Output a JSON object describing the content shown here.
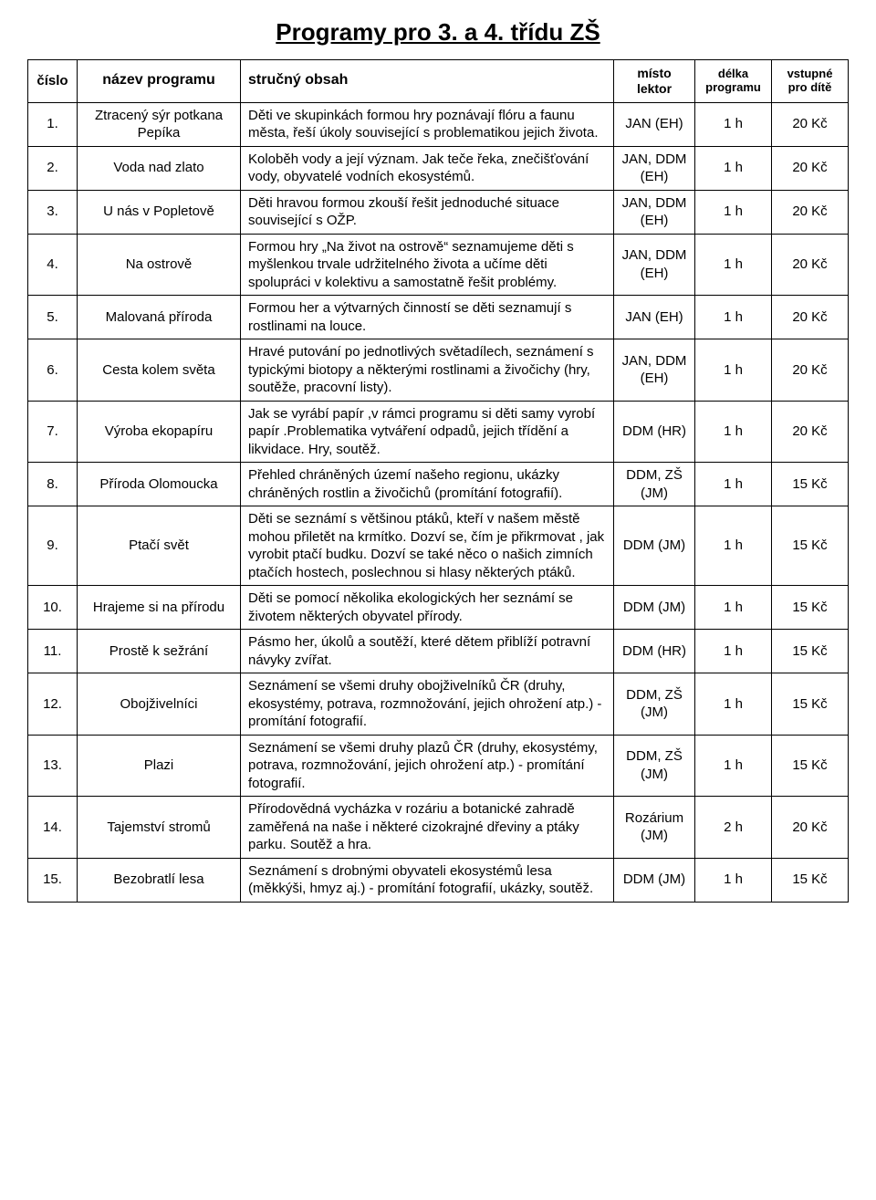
{
  "title": "Programy pro 3. a 4. třídu ZŠ",
  "headers": {
    "num": "číslo",
    "name": "název programu",
    "desc": "stručný obsah",
    "place_l1": "místo",
    "place_l2": "lektor",
    "dur_l1": "délka",
    "dur_l2": "programu",
    "price_l1": "vstupné",
    "price_l2": "pro dítě"
  },
  "rows": [
    {
      "num": "1.",
      "name": "Ztracený sýr potkana Pepíka",
      "desc": "Děti ve skupinkách formou hry poznávají flóru a faunu města, řeší úkoly související s problematikou jejich života.",
      "place": "JAN (EH)",
      "dur": "1 h",
      "price": "20 Kč"
    },
    {
      "num": "2.",
      "name": "Voda nad zlato",
      "desc": "Koloběh vody a její význam. Jak teče řeka, znečišťování vody, obyvatelé vodních ekosystémů.",
      "place": "JAN, DDM (EH)",
      "dur": "1 h",
      "price": "20 Kč"
    },
    {
      "num": "3.",
      "name": "U nás v Popletově",
      "desc": "Děti hravou formou zkouší řešit jednoduché situace související s OŽP.",
      "place": "JAN, DDM (EH)",
      "dur": "1 h",
      "price": "20 Kč"
    },
    {
      "num": "4.",
      "name": "Na ostrově",
      "desc": "Formou hry „Na život na ostrově“ seznamujeme děti s myšlenkou trvale udržitelného života a učíme děti spolupráci v kolektivu a samostatně řešit problémy.",
      "place": "JAN, DDM (EH)",
      "dur": "1 h",
      "price": "20 Kč"
    },
    {
      "num": "5.",
      "name": "Malovaná příroda",
      "desc": "Formou her a výtvarných činností se děti seznamují s rostlinami na louce.",
      "place": "JAN (EH)",
      "dur": "1 h",
      "price": "20 Kč"
    },
    {
      "num": "6.",
      "name": "Cesta kolem světa",
      "desc": "Hravé putování po jednotlivých světadílech, seznámení s typickými biotopy a některými rostlinami a živočichy (hry, soutěže, pracovní listy).",
      "place": "JAN, DDM (EH)",
      "dur": "1 h",
      "price": "20 Kč"
    },
    {
      "num": "7.",
      "name": "Výroba ekopapíru",
      "desc": "Jak se vyrábí papír ,v rámci programu si děti samy vyrobí papír .Problematika vytváření odpadů, jejich třídění a likvidace. Hry, soutěž.",
      "place": "DDM (HR)",
      "dur": "1 h",
      "price": "20 Kč"
    },
    {
      "num": "8.",
      "name": "Příroda Olomoucka",
      "desc": "Přehled chráněných území našeho regionu,  ukázky chráněných rostlin a živočichů (promítání fotografií).",
      "place": "DDM, ZŠ (JM)",
      "dur": "1 h",
      "price": "15 Kč"
    },
    {
      "num": "9.",
      "name": "Ptačí svět",
      "desc": "Děti se seznámí s většinou ptáků, kteří v našem městě mohou přiletět na krmítko. Dozví se, čím je přikrmovat , jak vyrobit ptačí budku. Dozví se také něco o našich zimních ptačích hostech, poslechnou si hlasy některých ptáků.",
      "place": "DDM (JM)",
      "dur": "1 h",
      "price": "15 Kč"
    },
    {
      "num": "10.",
      "name": "Hrajeme si na přírodu",
      "desc": "Děti se pomocí několika ekologických her seznámí se životem některých obyvatel přírody.",
      "place": "DDM (JM)",
      "dur": "1 h",
      "price": "15 Kč"
    },
    {
      "num": "11.",
      "name": "Prostě k sežrání",
      "desc": "Pásmo her, úkolů a soutěží, které dětem přiblíží potravní návyky zvířat.",
      "place": "DDM (HR)",
      "dur": "1 h",
      "price": "15 Kč"
    },
    {
      "num": "12.",
      "name": "Obojživelníci",
      "desc": "Seznámení se všemi druhy  obojživelníků ČR (druhy, ekosystémy, potrava, rozmnožování,  jejich ohrožení atp.) - promítání fotografií.",
      "place": "DDM, ZŠ (JM)",
      "dur": "1 h",
      "price": "15 Kč"
    },
    {
      "num": "13.",
      "name": "Plazi",
      "desc": "Seznámení se všemi druhy  plazů ČR (druhy, ekosystémy, potrava, rozmnožování,  jejich ohrožení atp.) - promítání fotografií.",
      "place": "DDM, ZŠ (JM)",
      "dur": "1 h",
      "price": "15 Kč"
    },
    {
      "num": "14.",
      "name": "Tajemství stromů",
      "desc": "Přírodovědná vycházka v rozáriu a botanické zahradě zaměřená na naše i některé cizokrajné dřeviny a ptáky parku. Soutěž a hra.",
      "place": "Rozárium (JM)",
      "dur": "2 h",
      "price": "20 Kč"
    },
    {
      "num": "15.",
      "name": "Bezobratlí lesa",
      "desc": "Seznámení s drobnými obyvateli ekosystémů lesa (měkkýši, hmyz aj.) - promítání fotografií, ukázky, soutěž.",
      "place": "DDM (JM)",
      "dur": "1 h",
      "price": "15 Kč"
    }
  ]
}
